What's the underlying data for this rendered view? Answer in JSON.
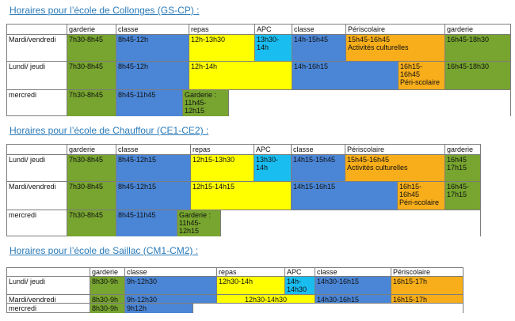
{
  "sections": [
    {
      "title": "Horaires pour l’école de Collonges (GS-CP) :",
      "headers": [
        "garderie",
        "classe",
        "repas",
        "APC",
        "classe",
        "Périscolaire",
        "garderie"
      ],
      "rows": [
        {
          "label": "Mardi/vendredi",
          "cells": [
            {
              "text": "7h30-8h45",
              "color": "#77a52f"
            },
            {
              "text": "8h45-12h",
              "color": "#4b86d6"
            },
            {
              "text": "12h-13h30",
              "color": "#ffff00"
            },
            {
              "text": "13h30-\n14h",
              "color": "#19bdf0"
            },
            {
              "text": "14h-15h45",
              "color": "#4b86d6"
            },
            {
              "text": "15h45-16h45\nActivités culturelles",
              "color": "#f7ae1a"
            },
            {
              "text": "16h45-18h30",
              "color": "#77a52f"
            }
          ]
        },
        {
          "label": "Lundi/ jeudi",
          "cells": [
            {
              "text": "7h30-8h45",
              "color": "#77a52f"
            },
            {
              "text": "8h45-12h",
              "color": "#4b86d6"
            },
            {
              "text": "12h-14h",
              "color": "#ffff00"
            },
            {
              "text": "14h-16h15",
              "color": "#4b86d6"
            },
            {
              "text": "16h15-\n16h45\nPéri-scolaire",
              "color": "#f7ae1a"
            },
            {
              "text": "16h45-18h30",
              "color": "#77a52f"
            }
          ]
        },
        {
          "label": "mercredi",
          "cells": [
            {
              "text": "7h30-8h45",
              "color": "#77a52f"
            },
            {
              "text": "8h45-11h45",
              "color": "#4b86d6"
            },
            {
              "text": "Garderie :\n11h45-\n12h15",
              "color": "#77a52f"
            }
          ]
        }
      ]
    },
    {
      "title": "Horaires pour l’école de Chauffour (CE1-CE2) :",
      "headers": [
        "garderie",
        "classe",
        "repas",
        "APC",
        "classe",
        "Périscolaire",
        "garderie"
      ],
      "rows": [
        {
          "label": "Lundi/ jeudi",
          "cells": [
            {
              "text": "7h30-8h45",
              "color": "#77a52f"
            },
            {
              "text": "8h45-12h15",
              "color": "#4b86d6"
            },
            {
              "text": "12h15-13h30",
              "color": "#ffff00"
            },
            {
              "text": "13h30-\n14h",
              "color": "#19bdf0"
            },
            {
              "text": "14h15-15h45",
              "color": "#4b86d6"
            },
            {
              "text": "15h45-16h45\nActivités culturelles",
              "color": "#f7ae1a"
            },
            {
              "text": "16h45\n17h15",
              "color": "#77a52f"
            }
          ]
        },
        {
          "label": "Mardi/vendredi",
          "cells": [
            {
              "text": "7h30-8h45",
              "color": "#77a52f"
            },
            {
              "text": "8h45-12h15",
              "color": "#4b86d6"
            },
            {
              "text": "12h15-14h15",
              "color": "#ffff00"
            },
            {
              "text": "14h15-16h15",
              "color": "#4b86d6"
            },
            {
              "text": "16h15-\n16h45\nPéri-scolaire",
              "color": "#f7ae1a"
            },
            {
              "text": "16h45-\n17h15",
              "color": "#77a52f"
            }
          ]
        },
        {
          "label": "mercredi",
          "cells": [
            {
              "text": "7h30-8h45",
              "color": "#77a52f"
            },
            {
              "text": "8h45-11h45",
              "color": "#4b86d6"
            },
            {
              "text": "Garderie :\n11h45-\n12h15",
              "color": "#77a52f"
            }
          ]
        }
      ]
    },
    {
      "title": "Horaires pour l’école de Saillac (CM1-CM2) :",
      "headers": [
        "garderie",
        "classe",
        "repas",
        "APC",
        "classe",
        "Périscolaire"
      ],
      "rows": [
        {
          "label": "Lundi/ jeudi",
          "cells": [
            {
              "text": "8h30-9h",
              "color": "#77a52f"
            },
            {
              "text": "9h-12h30",
              "color": "#4b86d6"
            },
            {
              "text": "12h30-14h",
              "color": "#ffff00"
            },
            {
              "text": "14h-\n14h30",
              "color": "#19bdf0"
            },
            {
              "text": "14h30-16h15",
              "color": "#4b86d6"
            },
            {
              "text": "16h15-17h",
              "color": "#f7ae1a"
            }
          ]
        },
        {
          "label": "Mardi/vendredi",
          "cells": [
            {
              "text": "8h30-9h",
              "color": "#77a52f"
            },
            {
              "text": "9h-12h30",
              "color": "#4b86d6"
            },
            {
              "text": "12h30-14h30",
              "color": "#ffff00"
            },
            {
              "text": "14h30-16h15",
              "color": "#4b86d6"
            },
            {
              "text": "16h15-17h",
              "color": "#f7ae1a"
            }
          ]
        },
        {
          "label": "mercredi",
          "cells": [
            {
              "text": "8h30-9h",
              "color": "#77a52f"
            },
            {
              "text": "9h12h",
              "color": "#4b86d6"
            }
          ]
        }
      ]
    }
  ]
}
